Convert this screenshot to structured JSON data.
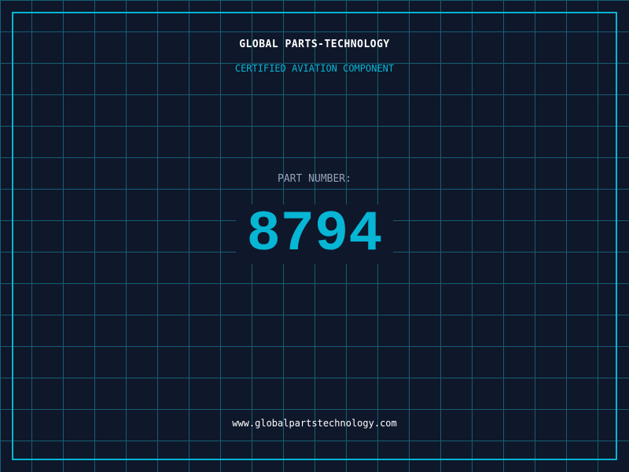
{
  "header": {
    "company": "GLOBAL PARTS-TECHNOLOGY",
    "subtitle": "CERTIFIED AVIATION COMPONENT"
  },
  "part": {
    "label": "PART NUMBER:",
    "number": "8794"
  },
  "footer": {
    "url": "www.globalpartstechnology.com"
  },
  "colors": {
    "background": "#0f172a",
    "accent": "#06b6d4",
    "grid": "#155e75"
  }
}
